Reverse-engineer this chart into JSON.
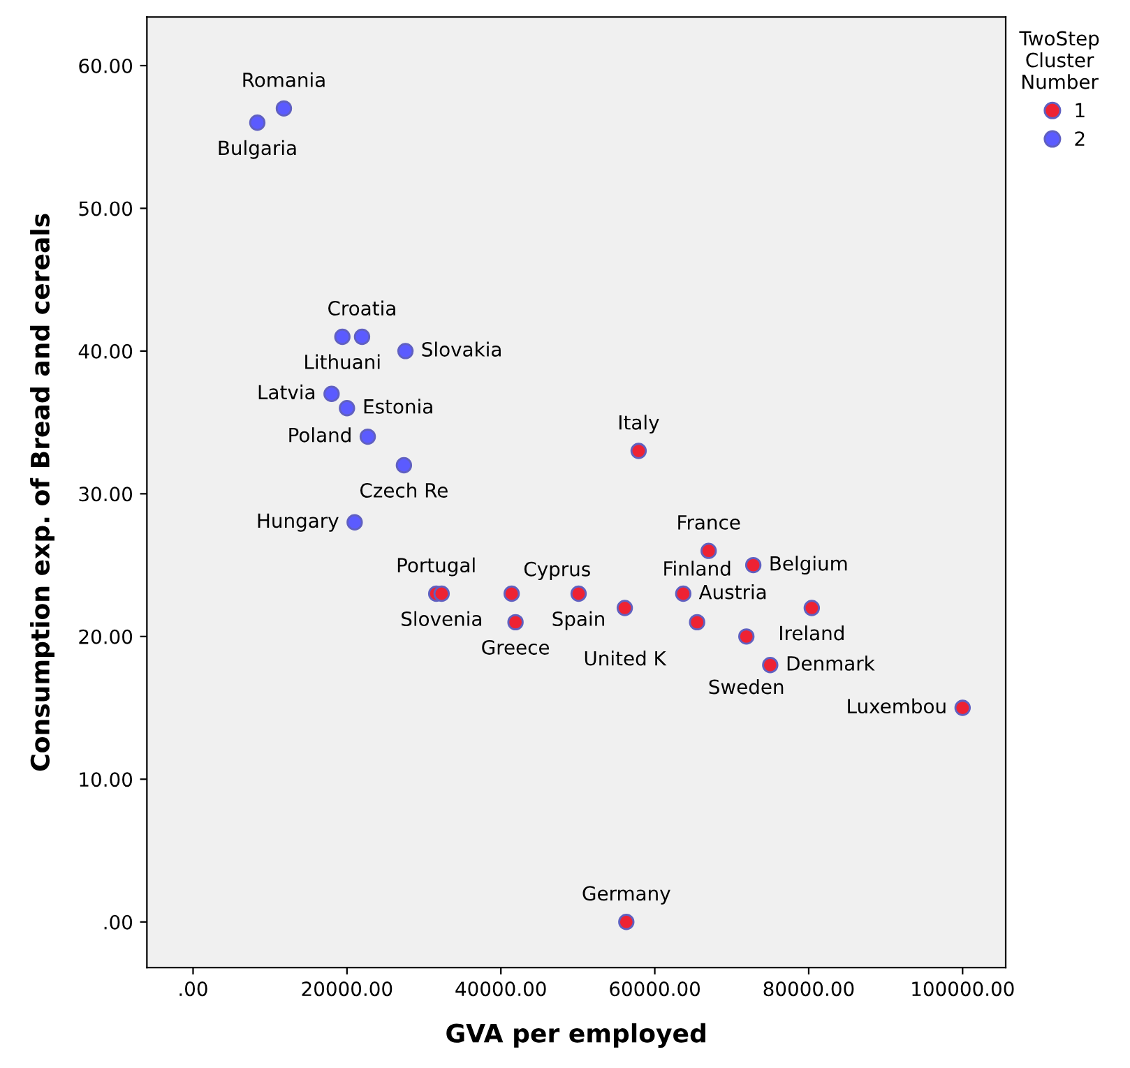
{
  "chart_data": {
    "type": "scatter",
    "xlabel": "GVA per employed",
    "ylabel": "Consumption exp. of Bread and cereals",
    "legend_title": "TwoStep\nCluster\nNumber",
    "legend": "top right",
    "grid": false,
    "marker": "circle",
    "xlim": [
      -6000,
      105600
    ],
    "ylim": [
      -3.2,
      63.4
    ],
    "xticks": [
      {
        "value": 0,
        "label": ".00"
      },
      {
        "value": 20000,
        "label": "20000.00"
      },
      {
        "value": 40000,
        "label": "40000.00"
      },
      {
        "value": 60000,
        "label": "60000.00"
      },
      {
        "value": 80000,
        "label": "80000.00"
      },
      {
        "value": 100000,
        "label": "100000.00"
      }
    ],
    "yticks": [
      {
        "value": 0,
        "label": ".00"
      },
      {
        "value": 10,
        "label": "10.00"
      },
      {
        "value": 20,
        "label": "20.00"
      },
      {
        "value": 30,
        "label": "30.00"
      },
      {
        "value": 40,
        "label": "40.00"
      },
      {
        "value": 50,
        "label": "50.00"
      },
      {
        "value": 60,
        "label": "60.00"
      }
    ],
    "series": [
      {
        "name": "1",
        "color": "#ee2233",
        "x": [
          31600,
          32300,
          41400,
          41900,
          50100,
          56100,
          63700,
          65500,
          67000,
          72800,
          80400,
          71900,
          75000,
          100000,
          57900,
          56300
        ],
        "values": [
          23,
          23,
          23,
          21,
          23,
          22,
          23,
          21,
          26,
          25,
          22,
          20,
          18,
          15,
          33,
          0
        ]
      },
      {
        "name": "2",
        "color": "#5b5bff",
        "x": [
          11800,
          8350,
          21960,
          19400,
          18000,
          27600,
          20000,
          22700,
          27400,
          21000
        ],
        "values": [
          57,
          56,
          41,
          41,
          37,
          40,
          36,
          34,
          32,
          28
        ]
      }
    ],
    "annotations": [
      {
        "text": "Portugal",
        "x": 31600,
        "y": 23
      },
      {
        "text": "Slovenia",
        "x": 32300,
        "y": 23
      },
      {
        "text": "Cyprus",
        "x": 41400,
        "y": 23
      },
      {
        "text": "Greece",
        "x": 41900,
        "y": 21
      },
      {
        "text": "Spain",
        "x": 50100,
        "y": 23
      },
      {
        "text": "United K",
        "x": 56100,
        "y": 22
      },
      {
        "text": "Austria",
        "x": 63700,
        "y": 23
      },
      {
        "text": "Finland",
        "x": 65500,
        "y": 21
      },
      {
        "text": "France",
        "x": 67000,
        "y": 26
      },
      {
        "text": "Belgium",
        "x": 72800,
        "y": 25
      },
      {
        "text": "Ireland",
        "x": 80400,
        "y": 22
      },
      {
        "text": "Sweden",
        "x": 71900,
        "y": 20
      },
      {
        "text": "Denmark",
        "x": 75000,
        "y": 18
      },
      {
        "text": "Luxembou",
        "x": 100000,
        "y": 15
      },
      {
        "text": "Italy",
        "x": 57900,
        "y": 33
      },
      {
        "text": "Germany",
        "x": 56300,
        "y": 0
      },
      {
        "text": "Romania",
        "x": 11800,
        "y": 57
      },
      {
        "text": "Bulgaria",
        "x": 8350,
        "y": 56
      },
      {
        "text": "Croatia",
        "x": 21960,
        "y": 41
      },
      {
        "text": "Lithuani",
        "x": 19400,
        "y": 41
      },
      {
        "text": "Latvia",
        "x": 18000,
        "y": 37
      },
      {
        "text": "Slovakia",
        "x": 27600,
        "y": 40
      },
      {
        "text": "Estonia",
        "x": 20000,
        "y": 36
      },
      {
        "text": "Poland",
        "x": 22700,
        "y": 34
      },
      {
        "text": "Czech Re",
        "x": 27400,
        "y": 32
      },
      {
        "text": "Hungary",
        "x": 21000,
        "y": 28
      }
    ]
  }
}
